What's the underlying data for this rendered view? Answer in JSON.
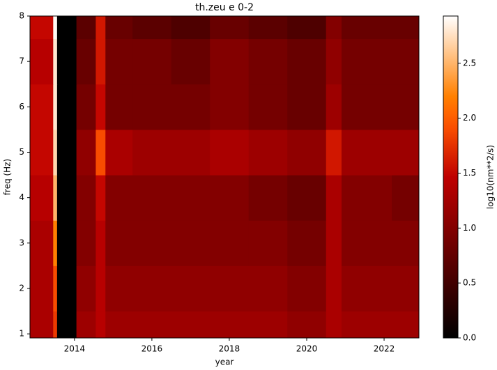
{
  "chart_data": {
    "type": "heatmap",
    "title": "th.zeu e 0-2",
    "x_label": "year",
    "y_label": "freq (Hz)",
    "colorbar_label": "log10(nm**2/s)",
    "colormap": "gist_heat",
    "xbins": [
      2012.85,
      2013.45,
      2013.55,
      2014.05,
      2014.55,
      2014.8,
      2015.5,
      2016.5,
      2017.5,
      2018.5,
      2019.5,
      2020.5,
      2020.9,
      2021.5,
      2022.2,
      2022.9
    ],
    "ybins": [
      0.91,
      1.5,
      2.5,
      3.5,
      4.5,
      5.5,
      6.5,
      7.5,
      8
    ],
    "z": [
      [
        1.3,
        1.8,
        0,
        1.2,
        1.4,
        1.2,
        1.2,
        1.2,
        1.2,
        1.2,
        1.1,
        1.3,
        1.2,
        1.2,
        1.2
      ],
      [
        1.3,
        1.9,
        0,
        1.1,
        1.4,
        1.1,
        1.1,
        1.1,
        1.1,
        1.1,
        1.0,
        1.3,
        1.1,
        1.1,
        1.1
      ],
      [
        1.3,
        2.2,
        0,
        1.0,
        1.4,
        1.0,
        1.0,
        1.0,
        1.0,
        1.0,
        0.9,
        1.3,
        1.0,
        1.0,
        1.0
      ],
      [
        1.4,
        2.5,
        0,
        1.0,
        1.5,
        1.0,
        1.0,
        1.0,
        1.0,
        0.9,
        0.8,
        1.3,
        1.0,
        1.0,
        0.9
      ],
      [
        1.5,
        2.7,
        0,
        1.1,
        1.9,
        1.3,
        1.2,
        1.2,
        1.3,
        1.2,
        1.1,
        1.6,
        1.2,
        1.2,
        1.2
      ],
      [
        1.5,
        2.8,
        0,
        0.9,
        1.5,
        0.9,
        0.9,
        0.9,
        1.0,
        0.9,
        0.8,
        1.2,
        0.9,
        0.9,
        0.9
      ],
      [
        1.4,
        2.8,
        0,
        0.8,
        1.6,
        0.9,
        0.9,
        0.8,
        1.0,
        0.9,
        0.8,
        1.1,
        0.9,
        0.9,
        0.9
      ],
      [
        1.5,
        2.9,
        0,
        0.7,
        1.6,
        0.8,
        0.7,
        0.6,
        0.8,
        0.7,
        0.6,
        1.0,
        0.8,
        0.8,
        0.8
      ]
    ],
    "xlim": [
      2012.85,
      2022.9
    ],
    "xticks": [
      2014,
      2016,
      2018,
      2020,
      2022
    ],
    "ylim": [
      0.91,
      8
    ],
    "yticks": [
      1,
      2,
      3,
      4,
      5,
      6,
      7,
      8
    ],
    "clim": [
      0,
      2.93
    ],
    "cticks": [
      {
        "value": 0,
        "label": "0.0"
      },
      {
        "value": 0.5,
        "label": "0.5"
      },
      {
        "value": 1,
        "label": "1.0"
      },
      {
        "value": 1.5,
        "label": "1.5"
      },
      {
        "value": 2,
        "label": "2.0"
      },
      {
        "value": 2.5,
        "label": "2.5"
      }
    ]
  }
}
